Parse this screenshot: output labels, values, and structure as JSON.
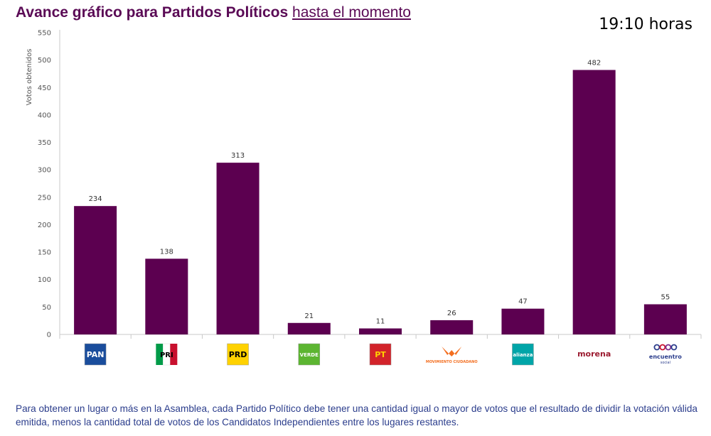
{
  "header": {
    "title_bold": "Avance gráfico para Partidos Políticos",
    "title_link": "hasta el momento",
    "time": "19:10 horas"
  },
  "chart_data": {
    "type": "bar",
    "ylabel": "Votos obtenidos",
    "ylim": [
      0,
      550
    ],
    "yticks": [
      0,
      50,
      100,
      150,
      200,
      250,
      300,
      350,
      400,
      450,
      500,
      550
    ],
    "grid": false,
    "bar_color": "#5c0050",
    "categories": [
      "PAN",
      "PRI",
      "PRD",
      "VERDE",
      "PT",
      "MOVIMIENTO CIUDADANO",
      "alianza",
      "morena",
      "encuentro social"
    ],
    "values": [
      234,
      138,
      313,
      21,
      11,
      26,
      47,
      482,
      55
    ]
  },
  "logos": [
    {
      "icon": "pan-logo-icon",
      "text": "PAN",
      "bg": "#1a4d9c",
      "fg": "#ffffff"
    },
    {
      "icon": "pri-logo-icon",
      "text": "PRI",
      "bg": "#ffffff",
      "fg": "#c8102e"
    },
    {
      "icon": "prd-logo-icon",
      "text": "PRD",
      "bg": "#ffd200",
      "fg": "#000000"
    },
    {
      "icon": "verde-logo-icon",
      "text": "VERDE",
      "bg": "#5cb531",
      "fg": "#ffffff"
    },
    {
      "icon": "pt-logo-icon",
      "text": "PT",
      "bg": "#d2232a",
      "fg": "#ffd200"
    },
    {
      "icon": "movimiento-ciudadano-logo-icon",
      "text": "MOVIMIENTO CIUDADANO",
      "bg": "#ffffff",
      "fg": "#f36f21"
    },
    {
      "icon": "nueva-alianza-logo-icon",
      "text": "alianza",
      "bg": "#00a5a8",
      "fg": "#ffffff"
    },
    {
      "icon": "morena-logo-icon",
      "text": "morena",
      "bg": "#ffffff",
      "fg": "#9b1b30"
    },
    {
      "icon": "encuentro-social-logo-icon",
      "text": "encuentro",
      "subtext": "social",
      "bg": "#ffffff",
      "fg": "#2b3d8c"
    }
  ],
  "footnote": "Para obtener un lugar o más en la Asamblea, cada Partido Político debe tener una cantidad igual o mayor de votos que el resultado de dividir la votación válida emitida, menos la cantidad total de votos de los Candidatos Independientes entre los lugares restantes."
}
